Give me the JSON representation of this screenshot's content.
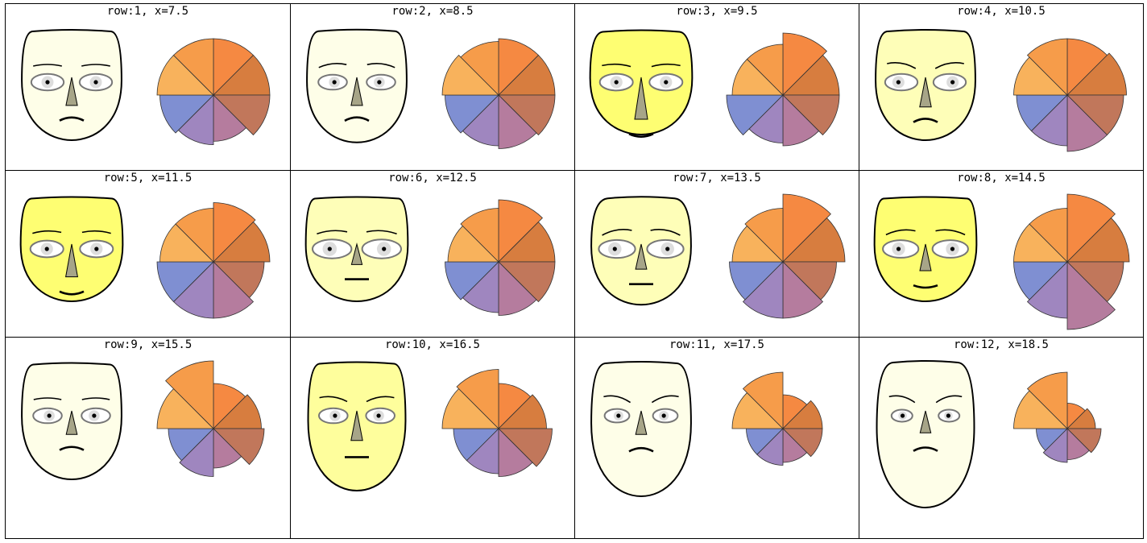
{
  "chart_data": {
    "type": "chernoff_faces_and_star_glyphs",
    "glyph_variables": 8,
    "wedge_colors": [
      "#f58942",
      "#d77d3f",
      "#c1775b",
      "#b57c9e",
      "#9f86bf",
      "#7f8fd2",
      "#f8b25c",
      "#f69c4a"
    ],
    "panels": [
      {
        "label": "row:1,  x=7.5",
        "row": 1,
        "x": 7.5,
        "face": {
          "fill": "#fefee8",
          "width": 0.86,
          "length": 0.9,
          "top": 0.92,
          "eye": 0.7,
          "nose": 0.55,
          "smile": -0.55,
          "brow": 0.0,
          "pupil": 0.5
        },
        "wedges": [
          1.0,
          1.0,
          1.0,
          0.82,
          0.88,
          0.95,
          1.0,
          1.0
        ]
      },
      {
        "label": "row:2,  x=8.5",
        "row": 2,
        "x": 8.5,
        "face": {
          "fill": "#fefee8",
          "width": 0.86,
          "length": 0.92,
          "top": 0.9,
          "eye": 0.55,
          "nose": 0.55,
          "smile": -0.6,
          "brow": -0.3,
          "pupil": 0.3
        },
        "wedges": [
          1.0,
          1.0,
          1.0,
          0.95,
          0.9,
          0.95,
          1.0,
          0.95
        ]
      },
      {
        "label": "row:3,  x=9.5",
        "row": 3,
        "x": 9.5,
        "face": {
          "fill": "#fefe72",
          "width": 0.88,
          "length": 0.85,
          "top": 0.88,
          "eye": 0.72,
          "nose": 1.0,
          "smile": 0.5,
          "brow": 0.1,
          "pupil": 0.5
        },
        "wedges": [
          1.1,
          1.0,
          1.0,
          0.9,
          0.85,
          1.0,
          0.9,
          0.9
        ]
      },
      {
        "label": "row:4,  x=10.5",
        "row": 4,
        "x": 10.5,
        "face": {
          "fill": "#fefeb8",
          "width": 0.86,
          "length": 0.9,
          "top": 0.9,
          "eye": 0.7,
          "nose": 0.6,
          "smile": -0.6,
          "brow": 0.5,
          "pupil": 0.8
        },
        "wedges": [
          1.0,
          1.05,
          1.0,
          1.0,
          0.9,
          0.9,
          0.95,
          1.0
        ]
      },
      {
        "label": "row:5,  x=11.5",
        "row": 5,
        "x": 11.5,
        "face": {
          "fill": "#fefe72",
          "width": 0.88,
          "length": 0.85,
          "top": 0.92,
          "eye": 0.72,
          "nose": 0.7,
          "smile": 0.5,
          "brow": -0.1,
          "pupil": 0.5
        },
        "wedges": [
          1.05,
          1.0,
          0.9,
          1.0,
          1.0,
          1.0,
          0.95,
          0.95
        ]
      },
      {
        "label": "row:6,  x=12.5",
        "row": 6,
        "x": 12.5,
        "face": {
          "fill": "#fefeb8",
          "width": 0.88,
          "length": 0.85,
          "top": 0.95,
          "eye": 0.95,
          "nose": 0.3,
          "smile": 0.0,
          "brow": -0.2,
          "pupil": 0.7
        },
        "wedges": [
          1.1,
          1.0,
          1.0,
          0.95,
          0.9,
          0.95,
          0.9,
          0.95
        ]
      },
      {
        "label": "row:7,  x=13.5",
        "row": 7,
        "x": 13.5,
        "face": {
          "fill": "#fefeb8",
          "width": 0.86,
          "length": 0.88,
          "top": 0.8,
          "eye": 0.85,
          "nose": 0.45,
          "smile": 0.0,
          "brow": -0.5,
          "pupil": 0.7
        },
        "wedges": [
          1.2,
          1.1,
          0.95,
          1.0,
          1.0,
          0.95,
          0.9,
          0.95
        ]
      },
      {
        "label": "row:8,  x=14.5",
        "row": 8,
        "x": 14.5,
        "face": {
          "fill": "#fefe72",
          "width": 0.88,
          "length": 0.85,
          "top": 0.95,
          "eye": 0.82,
          "nose": 0.5,
          "smile": 0.4,
          "brow": -0.4,
          "pupil": 0.7
        },
        "wedges": [
          1.2,
          1.1,
          1.0,
          1.2,
          1.0,
          0.95,
          0.95,
          0.95
        ]
      },
      {
        "label": "row:9,  x=15.5",
        "row": 9,
        "x": 15.5,
        "face": {
          "fill": "#fefee8",
          "width": 0.86,
          "length": 0.95,
          "top": 0.9,
          "eye": 0.55,
          "nose": 0.4,
          "smile": -0.55,
          "brow": 0.0,
          "pupil": 0.3
        },
        "wedges": [
          0.8,
          0.85,
          0.9,
          0.7,
          0.85,
          0.8,
          1.0,
          1.2
        ]
      },
      {
        "label": "row:10,  x=16.5",
        "row": 10,
        "x": 16.5,
        "face": {
          "fill": "#fefe9c",
          "width": 0.84,
          "length": 1.05,
          "top": 0.9,
          "eye": 0.55,
          "nose": 0.6,
          "smile": 0.0,
          "brow": 0.4,
          "pupil": 0.3
        },
        "wedges": [
          0.8,
          0.85,
          0.95,
          0.85,
          0.8,
          0.8,
          1.0,
          1.05
        ]
      },
      {
        "label": "row:11,  x=17.5",
        "row": 11,
        "x": 17.5,
        "face": {
          "fill": "#fefee8",
          "width": 0.86,
          "length": 1.1,
          "top": 0.85,
          "eye": 0.4,
          "nose": 0.4,
          "smile": -0.6,
          "brow": 0.6,
          "pupil": 0.3
        },
        "wedges": [
          0.6,
          0.7,
          0.7,
          0.6,
          0.65,
          0.65,
          0.9,
          1.0
        ]
      },
      {
        "label": "row:12,  x=18.5",
        "row": 12,
        "x": 18.5,
        "face": {
          "fill": "#fefee8",
          "width": 0.84,
          "length": 1.2,
          "top": 0.8,
          "eye": 0.25,
          "nose": 0.35,
          "smile": -0.6,
          "brow": 0.6,
          "pupil": 0.4
        },
        "wedges": [
          0.45,
          0.5,
          0.6,
          0.55,
          0.6,
          0.55,
          0.95,
          1.0
        ]
      }
    ]
  }
}
